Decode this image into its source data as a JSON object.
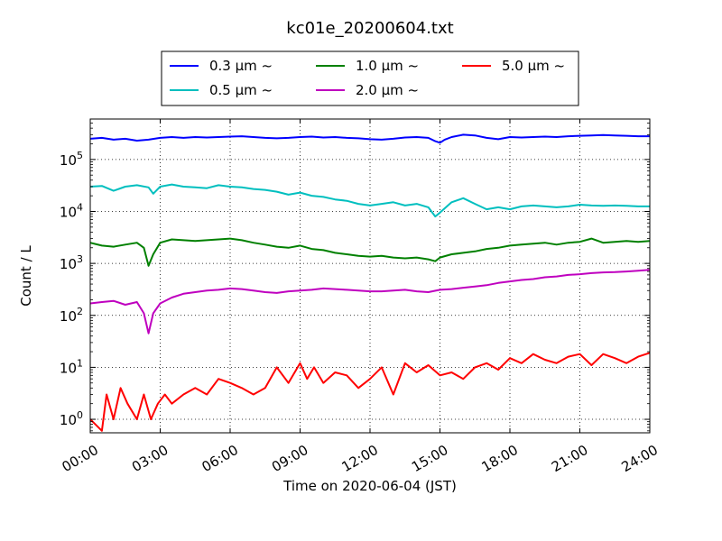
{
  "chart_data": {
    "type": "line",
    "title": "kc01e_20200604.txt",
    "xlabel": "Time on 2020-06-04 (JST)",
    "ylabel": "Count / L",
    "x_ticks": [
      "00:00",
      "03:00",
      "06:00",
      "09:00",
      "12:00",
      "15:00",
      "18:00",
      "21:00",
      "24:00"
    ],
    "x_tick_hours": [
      0,
      3,
      6,
      9,
      12,
      15,
      18,
      21,
      24
    ],
    "xlim_hours": [
      0,
      24
    ],
    "y_scale": "log",
    "ylim": [
      0.55,
      600000
    ],
    "y_ticks": [
      {
        "value": 1,
        "base": "10",
        "exp": "0"
      },
      {
        "value": 10,
        "base": "10",
        "exp": "1"
      },
      {
        "value": 100,
        "base": "10",
        "exp": "2"
      },
      {
        "value": 1000,
        "base": "10",
        "exp": "3"
      },
      {
        "value": 10000,
        "base": "10",
        "exp": "4"
      },
      {
        "value": 100000,
        "base": "10",
        "exp": "5"
      }
    ],
    "grid": true,
    "legend_position": "top (above plot)",
    "series": [
      {
        "name": "0.3 μm ~",
        "color": "#0000ff",
        "x_hours": [
          0,
          0.5,
          1,
          1.5,
          2,
          2.5,
          3,
          3.5,
          4,
          4.5,
          5,
          5.5,
          6,
          6.5,
          7,
          7.5,
          8,
          8.5,
          9,
          9.5,
          10,
          10.5,
          11,
          11.5,
          12,
          12.5,
          13,
          13.5,
          14,
          14.5,
          14.8,
          15,
          15.2,
          15.5,
          16,
          16.5,
          17,
          17.5,
          18,
          18.5,
          19,
          19.5,
          20,
          20.5,
          21,
          21.5,
          22,
          22.5,
          23,
          23.5,
          24
        ],
        "values": [
          250000,
          260000,
          240000,
          250000,
          230000,
          240000,
          260000,
          270000,
          260000,
          270000,
          265000,
          270000,
          275000,
          280000,
          270000,
          260000,
          255000,
          260000,
          270000,
          275000,
          265000,
          270000,
          260000,
          255000,
          245000,
          240000,
          250000,
          265000,
          270000,
          260000,
          225000,
          210000,
          240000,
          270000,
          300000,
          290000,
          260000,
          245000,
          270000,
          265000,
          270000,
          275000,
          270000,
          280000,
          285000,
          290000,
          295000,
          290000,
          285000,
          280000,
          280000
        ]
      },
      {
        "name": "0.5 μm ~",
        "color": "#00bfbf",
        "x_hours": [
          0,
          0.5,
          1,
          1.5,
          2,
          2.5,
          2.7,
          3,
          3.5,
          4,
          4.5,
          5,
          5.5,
          6,
          6.5,
          7,
          7.5,
          8,
          8.5,
          9,
          9.5,
          10,
          10.5,
          11,
          11.5,
          12,
          12.5,
          13,
          13.5,
          14,
          14.5,
          14.8,
          15,
          15.5,
          16,
          16.5,
          17,
          17.5,
          18,
          18.5,
          19,
          19.5,
          20,
          20.5,
          21,
          21.5,
          22,
          22.5,
          23,
          23.5,
          24
        ],
        "values": [
          30000,
          31000,
          25000,
          30000,
          32000,
          29000,
          22000,
          30000,
          33000,
          30000,
          29000,
          28000,
          32000,
          30000,
          29000,
          27000,
          26000,
          24000,
          21000,
          23000,
          20000,
          19000,
          17000,
          16000,
          14000,
          13000,
          14000,
          15000,
          13000,
          14000,
          12000,
          8000,
          9500,
          15000,
          18000,
          14000,
          11000,
          12000,
          11000,
          12500,
          13000,
          12500,
          12000,
          12500,
          13500,
          13000,
          12800,
          13000,
          12800,
          12500,
          12500
        ]
      },
      {
        "name": "1.0 μm ~",
        "color": "#008000",
        "x_hours": [
          0,
          0.5,
          1,
          1.5,
          2,
          2.3,
          2.5,
          2.7,
          3,
          3.5,
          4,
          4.5,
          5,
          5.5,
          6,
          6.5,
          7,
          7.5,
          8,
          8.5,
          9,
          9.5,
          10,
          10.5,
          11,
          11.5,
          12,
          12.5,
          13,
          13.5,
          14,
          14.5,
          14.8,
          15,
          15.5,
          16,
          16.5,
          17,
          17.5,
          18,
          18.5,
          19,
          19.5,
          20,
          20.5,
          21,
          21.5,
          22,
          22.5,
          23,
          23.5,
          24
        ],
        "values": [
          2500,
          2200,
          2100,
          2300,
          2500,
          2000,
          900,
          1500,
          2500,
          2900,
          2800,
          2700,
          2800,
          2900,
          3000,
          2800,
          2500,
          2300,
          2100,
          2000,
          2200,
          1900,
          1800,
          1600,
          1500,
          1400,
          1350,
          1400,
          1300,
          1250,
          1300,
          1200,
          1100,
          1300,
          1500,
          1600,
          1700,
          1900,
          2000,
          2200,
          2300,
          2400,
          2500,
          2300,
          2500,
          2600,
          3000,
          2500,
          2600,
          2700,
          2600,
          2700
        ]
      },
      {
        "name": "2.0 μm ~",
        "color": "#bf00bf",
        "x_hours": [
          0,
          0.5,
          1,
          1.5,
          2,
          2.3,
          2.5,
          2.7,
          3,
          3.5,
          4,
          4.5,
          5,
          5.5,
          6,
          6.5,
          7,
          7.5,
          8,
          8.5,
          9,
          9.5,
          10,
          10.5,
          11,
          11.5,
          12,
          12.5,
          13,
          13.5,
          14,
          14.5,
          15,
          15.5,
          16,
          16.5,
          17,
          17.5,
          18,
          18.5,
          19,
          19.5,
          20,
          20.5,
          21,
          21.5,
          22,
          22.5,
          23,
          23.5,
          24
        ],
        "values": [
          170,
          180,
          190,
          160,
          180,
          110,
          45,
          110,
          170,
          220,
          260,
          280,
          300,
          310,
          330,
          320,
          300,
          280,
          270,
          290,
          300,
          310,
          330,
          320,
          310,
          300,
          290,
          290,
          300,
          310,
          290,
          280,
          310,
          320,
          340,
          360,
          380,
          420,
          450,
          480,
          500,
          540,
          560,
          600,
          620,
          650,
          670,
          680,
          700,
          720,
          750
        ]
      },
      {
        "name": "5.0 μm ~",
        "color": "#ff0000",
        "x_hours": [
          0,
          0.5,
          0.7,
          1,
          1.3,
          1.6,
          2,
          2.3,
          2.6,
          2.9,
          3.2,
          3.5,
          4,
          4.5,
          5,
          5.5,
          6,
          6.5,
          7,
          7.5,
          8,
          8.5,
          9,
          9.3,
          9.6,
          10,
          10.5,
          11,
          11.5,
          12,
          12.5,
          13,
          13.5,
          14,
          14.5,
          15,
          15.5,
          16,
          16.5,
          17,
          17.5,
          18,
          18.5,
          19,
          19.5,
          20,
          20.5,
          21,
          21.5,
          22,
          22.5,
          23,
          23.5,
          24
        ],
        "values": [
          1,
          0.6,
          3,
          1,
          4,
          2,
          1,
          3,
          1,
          2,
          3,
          2,
          3,
          4,
          3,
          6,
          5,
          4,
          3,
          4,
          10,
          5,
          12,
          6,
          10,
          5,
          8,
          7,
          4,
          6,
          10,
          3,
          12,
          8,
          11,
          7,
          8,
          6,
          10,
          12,
          9,
          15,
          12,
          18,
          14,
          12,
          16,
          18,
          11,
          18,
          15,
          12,
          16,
          19
        ]
      }
    ]
  }
}
